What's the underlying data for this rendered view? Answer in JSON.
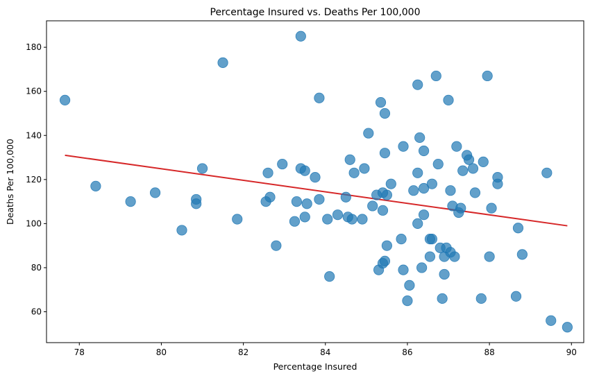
{
  "chart_data": {
    "type": "scatter",
    "title": "Percentage Insured vs. Deaths Per 100,000",
    "xlabel": "Percentage Insured",
    "ylabel": "Deaths Per 100,000",
    "xlim": [
      77.2,
      90.3
    ],
    "ylim": [
      46,
      192
    ],
    "xticks": [
      78,
      80,
      82,
      84,
      86,
      88,
      90
    ],
    "yticks": [
      60,
      80,
      100,
      120,
      140,
      160,
      180
    ],
    "grid": false,
    "legend": "none",
    "point_color": "#1f77b4",
    "trend_color": "#d62728",
    "trendline": {
      "x": [
        77.65,
        89.9
      ],
      "y": [
        131,
        99
      ]
    },
    "points": [
      {
        "x": 77.65,
        "y": 156
      },
      {
        "x": 78.4,
        "y": 117
      },
      {
        "x": 79.25,
        "y": 110
      },
      {
        "x": 79.85,
        "y": 114
      },
      {
        "x": 80.5,
        "y": 97
      },
      {
        "x": 80.85,
        "y": 111
      },
      {
        "x": 80.85,
        "y": 109
      },
      {
        "x": 81.0,
        "y": 125
      },
      {
        "x": 81.5,
        "y": 173
      },
      {
        "x": 81.85,
        "y": 102
      },
      {
        "x": 82.55,
        "y": 110
      },
      {
        "x": 82.6,
        "y": 123
      },
      {
        "x": 82.65,
        "y": 112
      },
      {
        "x": 82.8,
        "y": 90
      },
      {
        "x": 82.95,
        "y": 127
      },
      {
        "x": 83.25,
        "y": 101
      },
      {
        "x": 83.3,
        "y": 110
      },
      {
        "x": 83.4,
        "y": 185
      },
      {
        "x": 83.4,
        "y": 125
      },
      {
        "x": 83.5,
        "y": 124
      },
      {
        "x": 83.5,
        "y": 103
      },
      {
        "x": 83.55,
        "y": 109
      },
      {
        "x": 83.75,
        "y": 121
      },
      {
        "x": 83.85,
        "y": 157
      },
      {
        "x": 83.85,
        "y": 111
      },
      {
        "x": 84.05,
        "y": 102
      },
      {
        "x": 84.1,
        "y": 76
      },
      {
        "x": 84.3,
        "y": 104
      },
      {
        "x": 84.5,
        "y": 112
      },
      {
        "x": 84.55,
        "y": 103
      },
      {
        "x": 84.6,
        "y": 129
      },
      {
        "x": 84.65,
        "y": 102
      },
      {
        "x": 84.7,
        "y": 123
      },
      {
        "x": 84.9,
        "y": 102
      },
      {
        "x": 84.95,
        "y": 125
      },
      {
        "x": 85.05,
        "y": 141
      },
      {
        "x": 85.15,
        "y": 108
      },
      {
        "x": 85.25,
        "y": 113
      },
      {
        "x": 85.3,
        "y": 79
      },
      {
        "x": 85.35,
        "y": 155
      },
      {
        "x": 85.4,
        "y": 114
      },
      {
        "x": 85.4,
        "y": 106
      },
      {
        "x": 85.4,
        "y": 82
      },
      {
        "x": 85.45,
        "y": 83
      },
      {
        "x": 85.45,
        "y": 132
      },
      {
        "x": 85.45,
        "y": 150
      },
      {
        "x": 85.5,
        "y": 113
      },
      {
        "x": 85.5,
        "y": 90
      },
      {
        "x": 85.6,
        "y": 118
      },
      {
        "x": 85.85,
        "y": 93
      },
      {
        "x": 85.9,
        "y": 135
      },
      {
        "x": 85.9,
        "y": 79
      },
      {
        "x": 86.0,
        "y": 65
      },
      {
        "x": 86.05,
        "y": 72
      },
      {
        "x": 86.15,
        "y": 115
      },
      {
        "x": 86.25,
        "y": 123
      },
      {
        "x": 86.25,
        "y": 100
      },
      {
        "x": 86.25,
        "y": 163
      },
      {
        "x": 86.3,
        "y": 139
      },
      {
        "x": 86.35,
        "y": 80
      },
      {
        "x": 86.4,
        "y": 104
      },
      {
        "x": 86.4,
        "y": 116
      },
      {
        "x": 86.4,
        "y": 133
      },
      {
        "x": 86.55,
        "y": 85
      },
      {
        "x": 86.55,
        "y": 93
      },
      {
        "x": 86.6,
        "y": 93
      },
      {
        "x": 86.6,
        "y": 118
      },
      {
        "x": 86.7,
        "y": 167
      },
      {
        "x": 86.75,
        "y": 127
      },
      {
        "x": 86.8,
        "y": 89
      },
      {
        "x": 86.85,
        "y": 66
      },
      {
        "x": 86.9,
        "y": 85
      },
      {
        "x": 86.9,
        "y": 77
      },
      {
        "x": 86.95,
        "y": 89
      },
      {
        "x": 87.0,
        "y": 156
      },
      {
        "x": 87.05,
        "y": 115
      },
      {
        "x": 87.05,
        "y": 87
      },
      {
        "x": 87.1,
        "y": 108
      },
      {
        "x": 87.15,
        "y": 85
      },
      {
        "x": 87.2,
        "y": 135
      },
      {
        "x": 87.25,
        "y": 105
      },
      {
        "x": 87.3,
        "y": 107
      },
      {
        "x": 87.35,
        "y": 124
      },
      {
        "x": 87.45,
        "y": 131
      },
      {
        "x": 87.5,
        "y": 129
      },
      {
        "x": 87.6,
        "y": 125
      },
      {
        "x": 87.65,
        "y": 114
      },
      {
        "x": 87.8,
        "y": 66
      },
      {
        "x": 87.85,
        "y": 128
      },
      {
        "x": 87.95,
        "y": 167
      },
      {
        "x": 88.0,
        "y": 85
      },
      {
        "x": 88.05,
        "y": 107
      },
      {
        "x": 88.2,
        "y": 121
      },
      {
        "x": 88.2,
        "y": 118
      },
      {
        "x": 88.65,
        "y": 67
      },
      {
        "x": 88.7,
        "y": 98
      },
      {
        "x": 88.8,
        "y": 86
      },
      {
        "x": 89.4,
        "y": 123
      },
      {
        "x": 89.5,
        "y": 56
      },
      {
        "x": 89.9,
        "y": 53
      }
    ]
  }
}
